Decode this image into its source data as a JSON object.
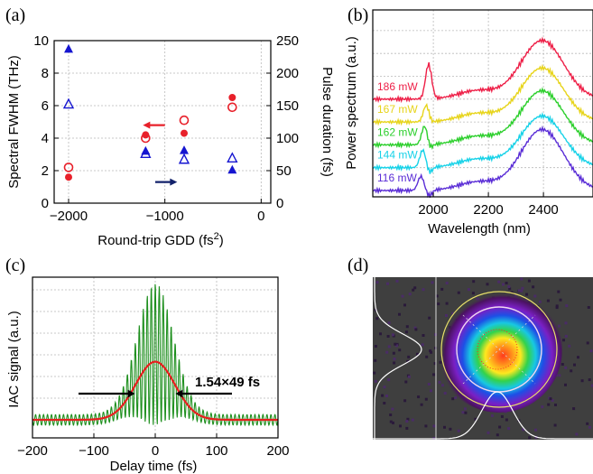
{
  "panels": {
    "a": "(a)",
    "b": "(b)",
    "c": "(c)",
    "d": "(d)"
  },
  "chart_data": [
    {
      "type": "scatter",
      "panel": "a",
      "xlabel": "Round-trip GDD (fs²)",
      "xlabel_main": "Round-trip GDD (fs",
      "xlabel_sup": "2",
      "xlabel_close": ")",
      "ylabel": "Spectral FWHM (THz)",
      "ylabel_right": "Pulse duration (fs)",
      "xlim": [
        -2150,
        100
      ],
      "ylim": [
        0,
        10
      ],
      "ylim_right": [
        0,
        250
      ],
      "xticks": [
        "−2000",
        "−1000",
        "0"
      ],
      "xtick_values": [
        -2000,
        -1000,
        0
      ],
      "yticks": [
        "0",
        "2",
        "4",
        "6",
        "8",
        "10"
      ],
      "ytick_values": [
        0,
        2,
        4,
        6,
        8,
        10
      ],
      "yticks_right": [
        "0",
        "50",
        "100",
        "150",
        "200",
        "250"
      ],
      "ytick_right_values": [
        0,
        50,
        100,
        150,
        200,
        250
      ],
      "grid": true,
      "colors": {
        "red": "#e8202a",
        "blue": "#1515d0",
        "navy": "#13226b"
      },
      "series": [
        {
          "marker": "filled-circle",
          "color": "#e8202a",
          "x": [
            -2000,
            -1200,
            -800,
            -300
          ],
          "y": [
            1.6,
            4.2,
            4.3,
            6.5
          ]
        },
        {
          "marker": "open-circle",
          "color": "#e8202a",
          "x": [
            -2000,
            -1200,
            -800,
            -300
          ],
          "y": [
            2.2,
            4.0,
            5.1,
            5.9
          ]
        },
        {
          "marker": "filled-triangle",
          "color": "#1515d0",
          "axis": "right",
          "x": [
            -2000,
            -1200,
            -800,
            -300
          ],
          "y": [
            237,
            80,
            81,
            51
          ]
        },
        {
          "marker": "open-triangle",
          "color": "#1515d0",
          "axis": "right",
          "x": [
            -2000,
            -1200,
            -800,
            -300
          ],
          "y": [
            152,
            76,
            67,
            69
          ]
        }
      ],
      "arrows": [
        {
          "direction": "left",
          "color": "#e8202a",
          "x": [
            -1000,
            -1200
          ],
          "y": [
            4.8,
            4.8
          ]
        },
        {
          "direction": "right",
          "color": "#13226b",
          "x": [
            -1100,
            -900
          ],
          "y": [
            1.3,
            1.3
          ]
        }
      ]
    },
    {
      "type": "line",
      "panel": "b",
      "xlabel": "Wavelength (nm)",
      "ylabel": "Power spectrum (a.u.)",
      "xlim": [
        1780,
        2580
      ],
      "xticks": [
        "2000",
        "2200",
        "2400"
      ],
      "xtick_values": [
        2000,
        2200,
        2400
      ],
      "grid": true,
      "series": [
        {
          "name": "186 mW",
          "color": "#ee1f47",
          "offset": 4,
          "peak": 1.25,
          "dip_amp": 0.85
        },
        {
          "name": "167 mW",
          "color": "#e7d41a",
          "offset": 3,
          "peak": 1.15,
          "dip_amp": 0.42
        },
        {
          "name": "162 mW",
          "color": "#2ccf2c",
          "offset": 2,
          "peak": 1.15,
          "dip_amp": 0.42
        },
        {
          "name": "144 mW",
          "color": "#16d2e8",
          "offset": 1,
          "peak": 1.1,
          "dip_amp": 0.38
        },
        {
          "name": "116 mW",
          "color": "#5a2dd6",
          "offset": 0,
          "peak": 1.3,
          "dip_amp": 0.3
        }
      ]
    },
    {
      "type": "line",
      "panel": "c",
      "xlabel": "Delay time (fs)",
      "ylabel": "IAC signal (a.u.)",
      "xlim": [
        -200,
        200
      ],
      "xticks": [
        "−200",
        "−100",
        "0",
        "100",
        "200"
      ],
      "xtick_values": [
        -200,
        -100,
        0,
        100,
        200
      ],
      "grid": true,
      "annotation": "1.54×49 fs",
      "fwhm_fs": 75.5,
      "colors": {
        "iac": "#1d8f1d",
        "envelope": "#e81e1e"
      }
    }
  ],
  "beam_profile": {
    "panel": "d",
    "background": "#3f3f3f",
    "ring_color": "#e8e06a",
    "profile_color": "#ffffff"
  }
}
